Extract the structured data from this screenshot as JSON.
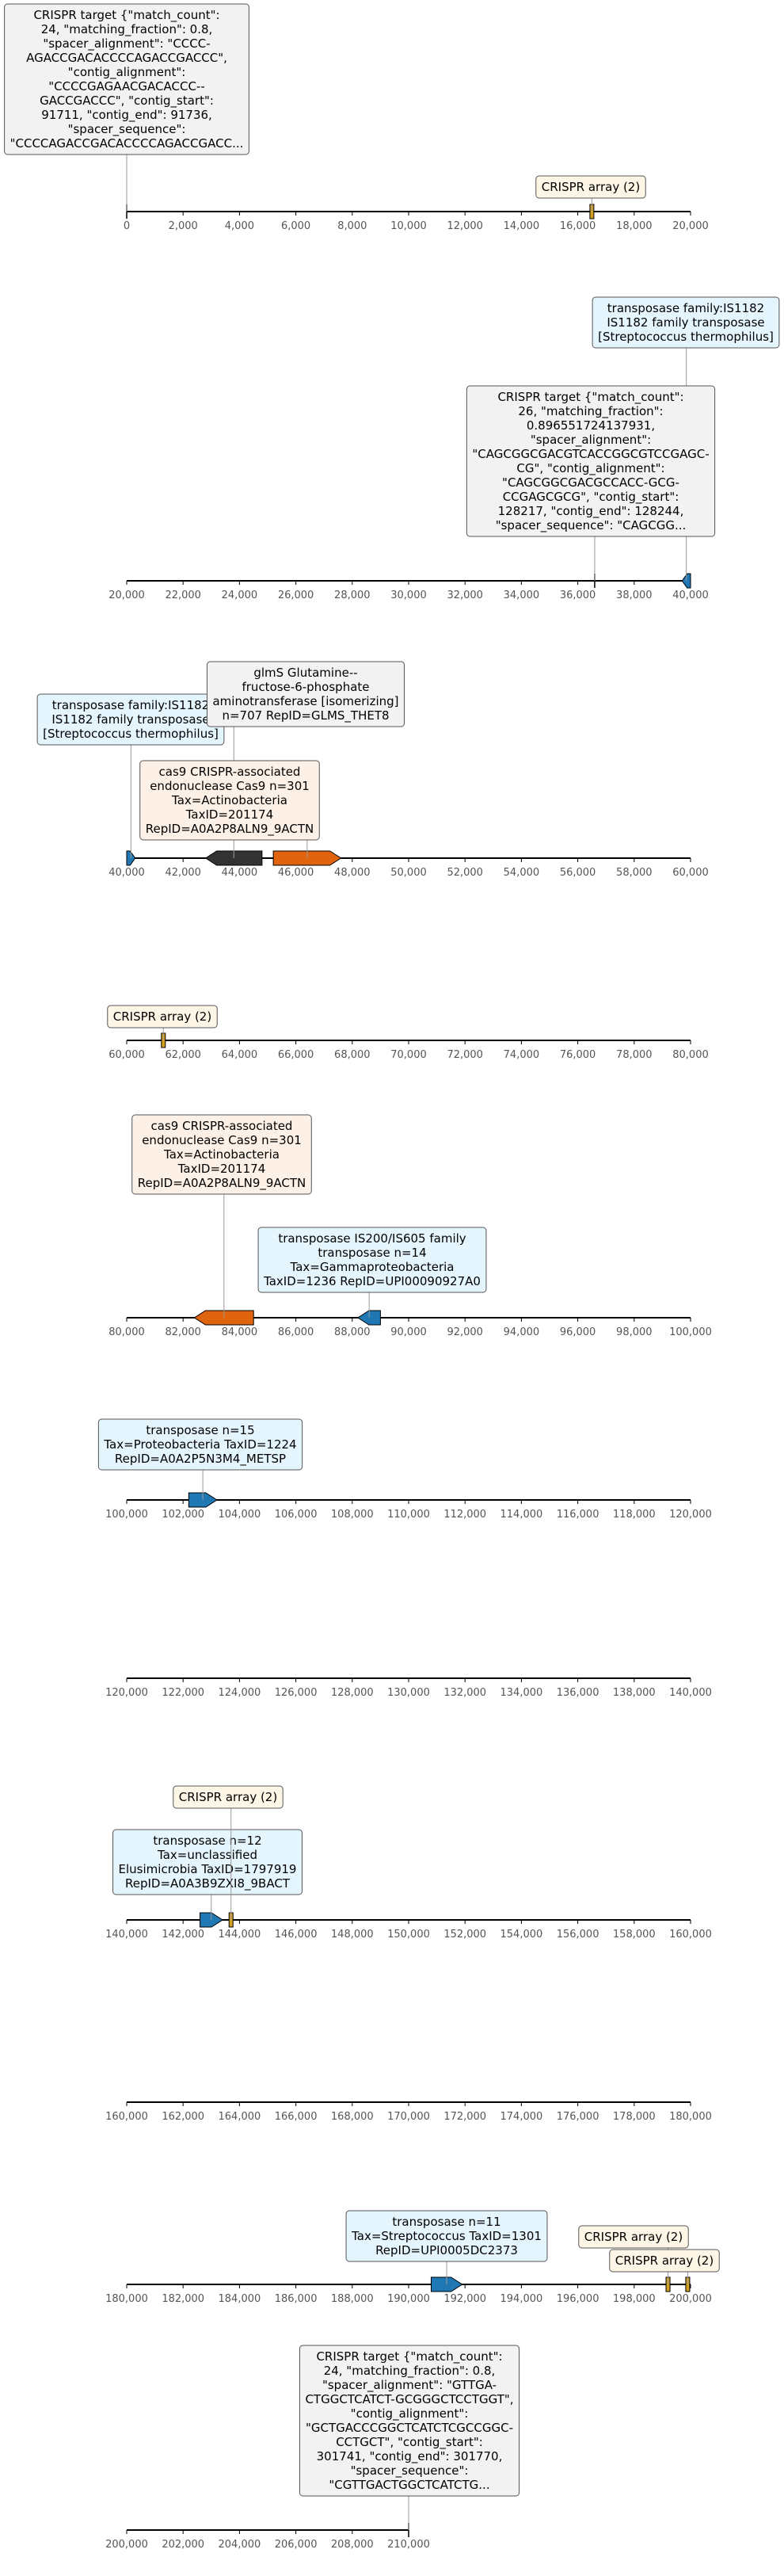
{
  "colors": {
    "axis": "#000000",
    "tick_label": "#555555",
    "leader": "#999999",
    "gene_blue": "#1f77b4",
    "gene_orange": "#e0640e",
    "gene_dark": "#333333",
    "crispr_array": "#d4a020",
    "box_crispr_bg": "#fdf6e6",
    "box_blue_bg": "#e5f5fd",
    "box_orange_bg": "#fdf0e6",
    "box_gray_bg": "#f2f2f2",
    "box_border": "#555555"
  },
  "tracks": [
    {
      "range": [
        0,
        20000
      ],
      "ticks": [
        "0",
        "2,000",
        "4,000",
        "6,000",
        "8,000",
        "10,000",
        "12,000",
        "14,000",
        "16,000",
        "18,000",
        "20,000"
      ],
      "features": [
        {
          "kind": "marker",
          "start": 0,
          "end": 0,
          "label_lines": [
            "CRISPR target {\"match_count\":",
            "24, \"matching_fraction\": 0.8,",
            "\"spacer_alignment\": \"CCCC-",
            "AGACCGACACCCCAGACCGACCC\",",
            "\"contig_alignment\":",
            "\"CCCCGAGAACGACACCC--",
            "GACCGACCC\", \"contig_start\":",
            "91711, \"contig_end\": 91736,",
            "\"spacer_sequence\":",
            "\"CCCCAGACCGACACCCCAGACCGACC..."
          ],
          "box": "gray"
        },
        {
          "kind": "crispr",
          "start": 16400,
          "end": 16600,
          "label_lines": [
            "CRISPR array (2)"
          ],
          "box": "crispr"
        }
      ]
    },
    {
      "range": [
        20000,
        40000
      ],
      "ticks": [
        "20,000",
        "22,000",
        "24,000",
        "26,000",
        "28,000",
        "30,000",
        "32,000",
        "34,000",
        "36,000",
        "38,000",
        "40,000"
      ],
      "features": [
        {
          "kind": "gene",
          "strand": "-",
          "color": "gene_blue",
          "start": 39700,
          "end": 40000,
          "label_lines": [
            "transposase family:IS1182",
            "IS1182 family transposase",
            "[Streptococcus thermophilus]"
          ],
          "box": "blue"
        },
        {
          "kind": "marker",
          "start": 36600,
          "end": 36600,
          "label_lines": [
            "CRISPR target {\"match_count\":",
            "26, \"matching_fraction\":",
            "0.896551724137931,",
            "\"spacer_alignment\":",
            "\"CAGCGGCGACGTCACCGGCGTCCGAGC-",
            "CG\", \"contig_alignment\":",
            "\"CAGCGGCGACGCCACC-GCG-",
            "CCGAGCGCG\", \"contig_start\":",
            "128217, \"contig_end\": 128244,",
            "\"spacer_sequence\": \"CAGCGG..."
          ],
          "box": "gray"
        }
      ]
    },
    {
      "range": [
        40000,
        60000
      ],
      "ticks": [
        "40,000",
        "42,000",
        "44,000",
        "46,000",
        "48,000",
        "50,000",
        "52,000",
        "54,000",
        "56,000",
        "58,000",
        "60,000"
      ],
      "features": [
        {
          "kind": "gene",
          "strand": "+",
          "color": "gene_blue",
          "start": 40000,
          "end": 40300,
          "label_lines": [
            "transposase family:IS1182",
            "IS1182 family transposase",
            "[Streptococcus thermophilus]"
          ],
          "box": "blue"
        },
        {
          "kind": "gene",
          "strand": "-",
          "color": "gene_dark",
          "start": 42800,
          "end": 44800,
          "label_lines": [
            "glmS Glutamine--",
            "fructose-6-phosphate",
            "aminotransferase [isomerizing]",
            "n=707 RepID=GLMS_THET8"
          ],
          "box": "gray"
        },
        {
          "kind": "gene",
          "strand": "+",
          "color": "gene_orange",
          "start": 45200,
          "end": 47600,
          "label_lines": [
            "cas9 CRISPR-associated",
            "endonuclease Cas9 n=301",
            "Tax=Actinobacteria",
            "TaxID=201174",
            "RepID=A0A2P8ALN9_9ACTN"
          ],
          "box": "orange"
        }
      ]
    },
    {
      "range": [
        60000,
        80000
      ],
      "ticks": [
        "60,000",
        "62,000",
        "64,000",
        "66,000",
        "68,000",
        "70,000",
        "72,000",
        "74,000",
        "76,000",
        "78,000",
        "80,000"
      ],
      "features": [
        {
          "kind": "crispr",
          "start": 61200,
          "end": 61400,
          "label_lines": [
            "CRISPR array (2)"
          ],
          "box": "crispr"
        }
      ]
    },
    {
      "range": [
        80000,
        100000
      ],
      "ticks": [
        "80,000",
        "82,000",
        "84,000",
        "86,000",
        "88,000",
        "90,000",
        "92,000",
        "94,000",
        "96,000",
        "98,000",
        "100,000"
      ],
      "features": [
        {
          "kind": "gene",
          "strand": "-",
          "color": "gene_orange",
          "start": 82400,
          "end": 84500,
          "label_lines": [
            "cas9 CRISPR-associated",
            "endonuclease Cas9 n=301",
            "Tax=Actinobacteria",
            "TaxID=201174",
            "RepID=A0A2P8ALN9_9ACTN"
          ],
          "box": "orange"
        },
        {
          "kind": "gene",
          "strand": "-",
          "color": "gene_blue",
          "start": 88200,
          "end": 89000,
          "label_lines": [
            "transposase IS200/IS605 family",
            "transposase n=14",
            "Tax=Gammaproteobacteria",
            "TaxID=1236 RepID=UPI00090927A0"
          ],
          "box": "blue"
        }
      ]
    },
    {
      "range": [
        100000,
        120000
      ],
      "ticks": [
        "100,000",
        "102,000",
        "104,000",
        "106,000",
        "108,000",
        "110,000",
        "112,000",
        "114,000",
        "116,000",
        "118,000",
        "120,000"
      ],
      "features": [
        {
          "kind": "gene",
          "strand": "+",
          "color": "gene_blue",
          "start": 102200,
          "end": 103200,
          "label_lines": [
            "transposase n=15",
            "Tax=Proteobacteria TaxID=1224",
            "RepID=A0A2P5N3M4_METSP"
          ],
          "box": "blue"
        }
      ]
    },
    {
      "range": [
        120000,
        140000
      ],
      "ticks": [
        "120,000",
        "122,000",
        "124,000",
        "126,000",
        "128,000",
        "130,000",
        "132,000",
        "134,000",
        "136,000",
        "138,000",
        "140,000"
      ],
      "features": []
    },
    {
      "range": [
        140000,
        160000
      ],
      "ticks": [
        "140,000",
        "142,000",
        "144,000",
        "146,000",
        "148,000",
        "150,000",
        "152,000",
        "154,000",
        "156,000",
        "158,000",
        "160,000"
      ],
      "features": [
        {
          "kind": "gene",
          "strand": "+",
          "color": "gene_blue",
          "start": 142600,
          "end": 143400,
          "label_lines": [
            "transposase n=12",
            "Tax=unclassified",
            "Elusimicrobia TaxID=1797919",
            "RepID=A0A3B9ZXI8_9BACT"
          ],
          "box": "blue"
        },
        {
          "kind": "crispr",
          "start": 143600,
          "end": 143800,
          "label_lines": [
            "CRISPR array (2)"
          ],
          "box": "crispr"
        }
      ]
    },
    {
      "range": [
        160000,
        180000
      ],
      "ticks": [
        "160,000",
        "162,000",
        "164,000",
        "166,000",
        "168,000",
        "170,000",
        "172,000",
        "174,000",
        "176,000",
        "178,000",
        "180,000"
      ],
      "features": []
    },
    {
      "range": [
        180000,
        200000
      ],
      "ticks": [
        "180,000",
        "182,000",
        "184,000",
        "186,000",
        "188,000",
        "190,000",
        "192,000",
        "194,000",
        "196,000",
        "198,000",
        "200,000"
      ],
      "features": [
        {
          "kind": "gene",
          "strand": "+",
          "color": "gene_blue",
          "start": 190800,
          "end": 191900,
          "label_lines": [
            "transposase n=11",
            "Tax=Streptococcus TaxID=1301",
            "RepID=UPI0005DC2373"
          ],
          "box": "blue"
        },
        {
          "kind": "crispr",
          "start": 199100,
          "end": 199300,
          "label_lines": [
            "CRISPR array (2)"
          ],
          "box": "crispr"
        },
        {
          "kind": "crispr",
          "start": 199800,
          "end": 200000,
          "label_lines": [
            "CRISPR array (2)"
          ],
          "box": "crispr"
        }
      ]
    },
    {
      "range": [
        200000,
        220000
      ],
      "ticks": [
        "200,000",
        "202,000",
        "204,000",
        "206,000",
        "208,000",
        "210,000"
      ],
      "features": [
        {
          "kind": "marker",
          "start": 210000,
          "end": 210000,
          "label_lines": [
            "CRISPR target {\"match_count\":",
            "24, \"matching_fraction\": 0.8,",
            "\"spacer_alignment\": \"GTTGA-",
            "CTGGCTCATCT-GCGGGCTCCTGGT\",",
            "\"contig_alignment\":",
            "\"GCTGACCCGGCTCATCTCGCCGGC-",
            "CCTGCT\", \"contig_start\":",
            "301741, \"contig_end\": 301770,",
            "\"spacer_sequence\":",
            "\"CGTTGACTGGCTCATCTG..."
          ],
          "box": "gray"
        }
      ]
    }
  ]
}
